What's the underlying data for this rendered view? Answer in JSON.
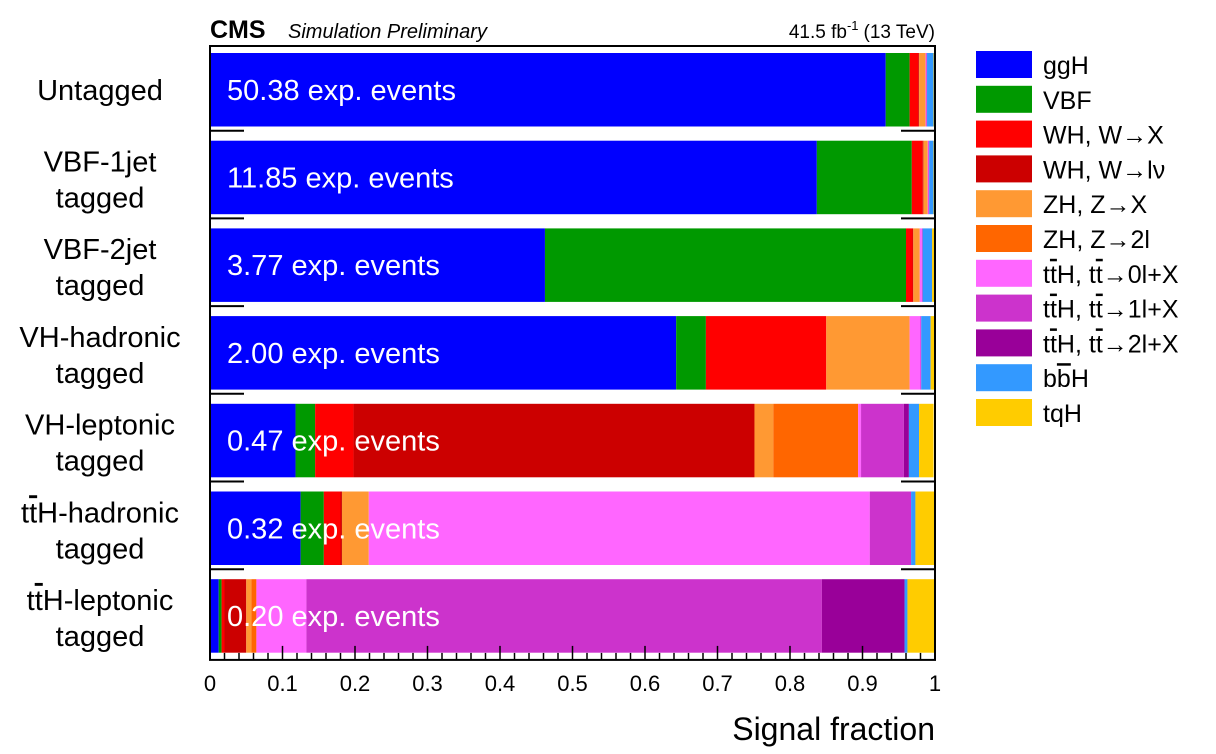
{
  "header": {
    "experiment": "CMS",
    "status": "Simulation Preliminary",
    "lumi_value": "41.5 fb",
    "lumi_exp": "-1",
    "energy": "(13 TeV)"
  },
  "chart_data": {
    "type": "bar",
    "orientation": "horizontal-stacked",
    "xlabel": "Signal fraction",
    "xlim": [
      0,
      1
    ],
    "xticks": [
      "0",
      "0.1",
      "0.2",
      "0.3",
      "0.4",
      "0.5",
      "0.6",
      "0.7",
      "0.8",
      "0.9",
      "1"
    ],
    "legend_position": "right",
    "categories": [
      {
        "line1": "Untagged",
        "line2": "",
        "events": "50.38 exp. events"
      },
      {
        "line1": "VBF-1jet",
        "line2": "tagged",
        "events": "11.85 exp. events"
      },
      {
        "line1": "VBF-2jet",
        "line2": "tagged",
        "events": "3.77 exp. events"
      },
      {
        "line1": "VH-hadronic",
        "line2": "tagged",
        "events": "2.00 exp. events"
      },
      {
        "line1": "VH-leptonic",
        "line2": "tagged",
        "events": "0.47 exp. events"
      },
      {
        "line1": "ttH-hadronic",
        "line2": "tagged",
        "events": "0.32 exp. events"
      },
      {
        "line1": "ttH-leptonic",
        "line2": "tagged",
        "events": "0.20 exp. events"
      }
    ],
    "series": [
      {
        "name": "ggH",
        "color": "#0000ff",
        "values": [
          0.932,
          0.837,
          0.462,
          0.643,
          0.118,
          0.125,
          0.012
        ]
      },
      {
        "name": "VBF",
        "color": "#009900",
        "values": [
          0.033,
          0.131,
          0.498,
          0.041,
          0.027,
          0.032,
          0.004
        ]
      },
      {
        "name": "WH, W→X",
        "color": "#ff0000",
        "values": [
          0.012,
          0.015,
          0.009,
          0.166,
          0.053,
          0.023,
          0.004
        ]
      },
      {
        "name": "WH, W→lν",
        "color": "#cc0000",
        "values": [
          0.001,
          0.001,
          0.001,
          0.0,
          0.553,
          0.002,
          0.03
        ]
      },
      {
        "name": "ZH, Z→X",
        "color": "#ff9933",
        "values": [
          0.009,
          0.006,
          0.009,
          0.115,
          0.026,
          0.037,
          0.007
        ]
      },
      {
        "name": "ZH, Z→2l",
        "color": "#ff6600",
        "values": [
          0.0,
          0.0,
          0.0,
          0.0,
          0.117,
          0.0,
          0.007
        ]
      },
      {
        "name": "ttH, tt→0l+X",
        "color": "#ff66ff",
        "values": [
          0.001,
          0.001,
          0.003,
          0.015,
          0.004,
          0.691,
          0.069
        ]
      },
      {
        "name": "ttH, tt→1l+X",
        "color": "#cc33cc",
        "values": [
          0.001,
          0.001,
          0.001,
          0.001,
          0.059,
          0.057,
          0.711
        ]
      },
      {
        "name": "ttH, tt→2l+X",
        "color": "#990099",
        "values": [
          0.0,
          0.0,
          0.0,
          0.0,
          0.007,
          0.0,
          0.114
        ]
      },
      {
        "name": "bbH",
        "color": "#3399ff",
        "values": [
          0.009,
          0.006,
          0.013,
          0.013,
          0.014,
          0.006,
          0.004
        ]
      },
      {
        "name": "tqH",
        "color": "#ffcc00",
        "values": [
          0.002,
          0.002,
          0.004,
          0.006,
          0.02,
          0.027,
          0.038
        ]
      }
    ]
  }
}
